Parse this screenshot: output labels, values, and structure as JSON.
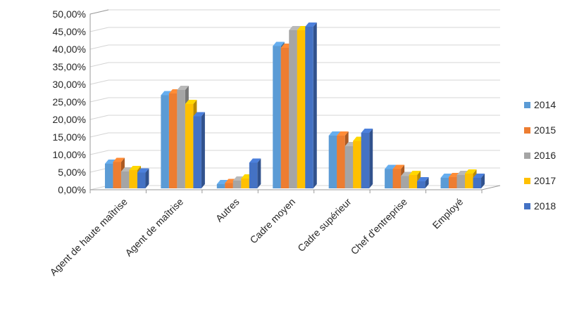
{
  "chart_data": {
    "type": "bar",
    "categories": [
      "Agent de haute maîtrise",
      "Agent de maîtrise",
      "Autres",
      "Cadre moyen",
      "Cadre supérieur",
      "Chef d'entreprise",
      "Employé"
    ],
    "series": [
      {
        "name": "2014",
        "color": "#5b9bd5",
        "values": [
          7.0,
          26.5,
          1.2,
          40.5,
          15.0,
          5.5,
          3.0
        ]
      },
      {
        "name": "2015",
        "color": "#ed7d31",
        "values": [
          7.5,
          27.0,
          1.5,
          40.0,
          15.0,
          5.5,
          3.2
        ]
      },
      {
        "name": "2016",
        "color": "#a5a5a5",
        "values": [
          4.8,
          28.0,
          2.2,
          45.0,
          12.0,
          3.5,
          3.8
        ]
      },
      {
        "name": "2017",
        "color": "#ffc000",
        "values": [
          5.2,
          24.0,
          2.8,
          45.0,
          13.5,
          3.8,
          4.2
        ]
      },
      {
        "name": "2018",
        "color": "#4472c4",
        "values": [
          4.5,
          20.5,
          7.3,
          46.0,
          15.8,
          2.0,
          3.0
        ]
      }
    ],
    "ylim": [
      0,
      50
    ],
    "yticks": [
      "0,00%",
      "5,00%",
      "10,00%",
      "15,00%",
      "20,00%",
      "25,00%",
      "30,00%",
      "35,00%",
      "40,00%",
      "45,00%",
      "50,00%"
    ],
    "grid": true,
    "legend_position": "right",
    "title": "",
    "xlabel": "",
    "ylabel": ""
  }
}
